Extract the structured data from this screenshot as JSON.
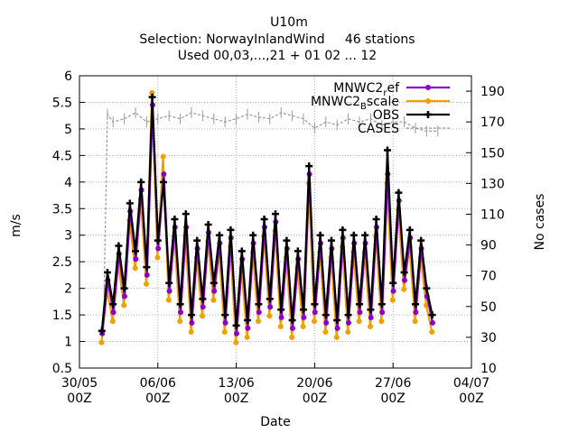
{
  "title_lines": [
    "U10m",
    "Selection: NorwayInlandWind     46 stations",
    "Used 00,03,...,21 + 01 02 ... 12"
  ],
  "chart_data": {
    "type": "line",
    "xlabel": "Date",
    "ylabel": "m/s",
    "y2label": "No cases",
    "xlim_days": [
      0,
      35
    ],
    "ylim": [
      0.5,
      6
    ],
    "y2lim": [
      10,
      200
    ],
    "x_ticks": [
      {
        "day": 0,
        "line1": "30/05",
        "line2": "00Z"
      },
      {
        "day": 7,
        "line1": "06/06",
        "line2": "00Z"
      },
      {
        "day": 14,
        "line1": "13/06",
        "line2": "00Z"
      },
      {
        "day": 21,
        "line1": "20/06",
        "line2": "00Z"
      },
      {
        "day": 28,
        "line1": "27/06",
        "line2": "00Z"
      },
      {
        "day": 35,
        "line1": "04/07",
        "line2": "00Z"
      }
    ],
    "y_ticks": [
      "0.5",
      "1",
      "1.5",
      "2",
      "2.5",
      "3",
      "3.5",
      "4",
      "4.5",
      "5",
      "5.5",
      "6"
    ],
    "y2_ticks": [
      "10",
      "30",
      "50",
      "70",
      "90",
      "110",
      "130",
      "150",
      "170",
      "190"
    ],
    "legend": [
      {
        "label_main": "MNWC2",
        "label_sub": "r",
        "label_tail": "ef",
        "color": "#8b00c8"
      },
      {
        "label_main": "MNWC2",
        "label_sub": "B",
        "label_tail": "scale",
        "color": "#f0a000"
      },
      {
        "label_main": "OBS",
        "label_sub": "",
        "label_tail": "",
        "color": "#000000"
      },
      {
        "label_main": "CASES",
        "label_sub": "",
        "label_tail": "",
        "color": "#999999"
      }
    ],
    "series": [
      {
        "name": "MNWC2_ref",
        "color": "#8b00c8",
        "dx": 0.03,
        "dy": -0.05,
        "x": [
          2.0,
          2.5,
          3.0,
          3.5,
          4.0,
          4.5,
          5.0,
          5.5,
          6.0,
          6.5,
          7.0,
          7.5,
          8.0,
          8.5,
          9.0,
          9.5,
          10.0,
          10.5,
          11.0,
          11.5,
          12.0,
          12.5,
          13.0,
          13.5,
          14.0,
          14.5,
          15.0,
          15.5,
          16.0,
          16.5,
          17.0,
          17.5,
          18.0,
          18.5,
          19.0,
          19.5,
          20.0,
          20.5,
          21.0,
          21.5,
          22.0,
          22.5,
          23.0,
          23.5,
          24.0,
          24.5,
          25.0,
          25.5,
          26.0,
          26.5,
          27.0,
          27.5,
          28.0,
          28.5,
          29.0,
          29.5,
          30.0,
          30.5,
          31.0,
          31.5
        ],
        "y": [
          1.2,
          2.2,
          1.6,
          2.7,
          1.9,
          3.5,
          2.6,
          3.9,
          2.3,
          5.5,
          2.8,
          4.2,
          2.0,
          3.2,
          1.6,
          3.2,
          1.4,
          2.8,
          1.7,
          3.1,
          2.0,
          2.9,
          1.4,
          3.0,
          1.2,
          2.6,
          1.3,
          2.9,
          1.6,
          3.2,
          1.7,
          3.3,
          1.5,
          2.8,
          1.3,
          2.6,
          1.5,
          4.2,
          1.6,
          2.9,
          1.4,
          2.8,
          1.3,
          3.0,
          1.4,
          2.9,
          1.6,
          2.9,
          1.5,
          3.2,
          1.6,
          4.2,
          2.0,
          3.7,
          2.2,
          3.0,
          1.6,
          2.8,
          1.9,
          1.4
        ]
      },
      {
        "name": "MNWC2_Bscale",
        "color": "#f0a000",
        "dx": -0.03,
        "dy": -0.12,
        "x": [
          2.0,
          2.5,
          3.0,
          3.5,
          4.0,
          4.5,
          5.0,
          5.5,
          6.0,
          6.5,
          7.0,
          7.5,
          8.0,
          8.5,
          9.0,
          9.5,
          10.0,
          10.5,
          11.0,
          11.5,
          12.0,
          12.5,
          13.0,
          13.5,
          14.0,
          14.5,
          15.0,
          15.5,
          16.0,
          16.5,
          17.0,
          17.5,
          18.0,
          18.5,
          19.0,
          19.5,
          20.0,
          20.5,
          21.0,
          21.5,
          22.0,
          22.5,
          23.0,
          23.5,
          24.0,
          24.5,
          25.0,
          25.5,
          26.0,
          26.5,
          27.0,
          27.5,
          28.0,
          28.5,
          29.0,
          29.5,
          30.0,
          30.5,
          31.0,
          31.5
        ],
        "y": [
          1.1,
          2.1,
          1.5,
          2.6,
          1.8,
          3.4,
          2.5,
          3.8,
          2.2,
          5.8,
          2.7,
          4.6,
          1.9,
          3.1,
          1.5,
          3.1,
          1.3,
          2.7,
          1.6,
          3.0,
          1.9,
          2.8,
          1.3,
          2.9,
          1.1,
          2.5,
          1.2,
          2.8,
          1.5,
          3.1,
          1.6,
          3.2,
          1.4,
          2.7,
          1.2,
          2.5,
          1.4,
          4.1,
          1.5,
          2.8,
          1.3,
          2.7,
          1.2,
          2.9,
          1.3,
          2.8,
          1.5,
          2.8,
          1.4,
          3.1,
          1.5,
          4.1,
          1.9,
          3.6,
          2.1,
          2.9,
          1.5,
          2.7,
          1.8,
          1.3
        ]
      },
      {
        "name": "OBS",
        "color": "#000000",
        "dx": 0,
        "dy": 0,
        "x": [
          2.0,
          2.5,
          3.0,
          3.5,
          4.0,
          4.5,
          5.0,
          5.5,
          6.0,
          6.5,
          7.0,
          7.5,
          8.0,
          8.5,
          9.0,
          9.5,
          10.0,
          10.5,
          11.0,
          11.5,
          12.0,
          12.5,
          13.0,
          13.5,
          14.0,
          14.5,
          15.0,
          15.5,
          16.0,
          16.5,
          17.0,
          17.5,
          18.0,
          18.5,
          19.0,
          19.5,
          20.0,
          20.5,
          21.0,
          21.5,
          22.0,
          22.5,
          23.0,
          23.5,
          24.0,
          24.5,
          25.0,
          25.5,
          26.0,
          26.5,
          27.0,
          27.5,
          28.0,
          28.5,
          29.0,
          29.5,
          30.0,
          30.5,
          31.0,
          31.5
        ],
        "y": [
          1.2,
          2.3,
          1.7,
          2.8,
          2.0,
          3.6,
          2.7,
          4.0,
          2.4,
          5.6,
          2.9,
          4.0,
          2.1,
          3.3,
          1.7,
          3.4,
          1.5,
          2.9,
          1.8,
          3.2,
          2.1,
          3.0,
          1.5,
          3.1,
          1.3,
          2.7,
          1.4,
          3.0,
          1.7,
          3.3,
          1.8,
          3.4,
          1.6,
          2.9,
          1.4,
          2.7,
          1.6,
          4.3,
          1.7,
          3.0,
          1.5,
          2.9,
          1.4,
          3.1,
          1.5,
          3.0,
          1.7,
          3.0,
          1.6,
          3.3,
          1.7,
          4.6,
          2.1,
          3.8,
          2.3,
          3.1,
          1.7,
          2.9,
          2.0,
          1.5
        ]
      },
      {
        "name": "CASES",
        "color": "#999999",
        "dx": 0,
        "dy": 0,
        "axis": "y2",
        "x": [
          2.2,
          2.5,
          3.0,
          4.0,
          5.0,
          6.0,
          7.0,
          8.0,
          9.0,
          10.0,
          11.0,
          12.0,
          13.0,
          14.0,
          15.0,
          16.0,
          17.0,
          18.0,
          19.0,
          20.0,
          21.0,
          22.0,
          23.0,
          24.0,
          25.0,
          26.0,
          27.0,
          28.0,
          29.0,
          30.0,
          31.0,
          32.0
        ],
        "y": [
          60,
          175,
          170,
          172,
          176,
          170,
          172,
          174,
          172,
          176,
          174,
          172,
          170,
          172,
          175,
          173,
          172,
          176,
          174,
          172,
          166,
          170,
          168,
          172,
          170,
          172,
          168,
          170,
          170,
          166,
          164,
          164
        ]
      }
    ]
  }
}
